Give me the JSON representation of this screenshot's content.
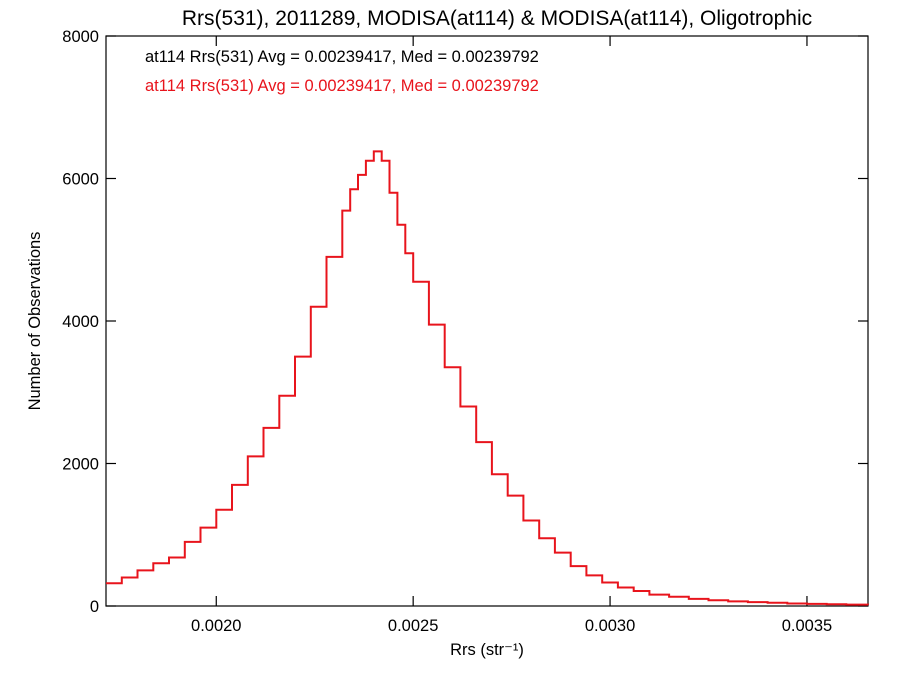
{
  "chart_data": {
    "type": "line",
    "title": "Rrs(531), 2011289, MODISA(at114) & MODISA(at114), Oligotrophic",
    "xlabel": "Rrs (str⁻¹)",
    "ylabel": "Number of Observations",
    "xlim": [
      0.00172,
      0.003655
    ],
    "ylim": [
      0,
      8000
    ],
    "x_ticks": [
      0.002,
      0.0025,
      0.003,
      0.0035
    ],
    "x_tick_labels": [
      "0.0020",
      "0.0025",
      "0.0030",
      "0.0035"
    ],
    "y_ticks": [
      0,
      2000,
      4000,
      6000,
      8000
    ],
    "y_tick_labels": [
      "0",
      "2000",
      "4000",
      "6000",
      "8000"
    ],
    "grid": false,
    "annotations": [
      {
        "text": "at114 Rrs(531) Avg = 0.00239417, Med = 0.00239792",
        "color": "#000000"
      },
      {
        "text": "at114 Rrs(531) Avg = 0.00239417, Med = 0.00239792",
        "color": "#e8141c"
      }
    ],
    "series": [
      {
        "color": "#e8141c",
        "style": "histogram-step",
        "x": [
          0.00172,
          0.00176,
          0.0018,
          0.00184,
          0.00188,
          0.00192,
          0.00196,
          0.002,
          0.00204,
          0.00208,
          0.00212,
          0.00216,
          0.0022,
          0.00224,
          0.00228,
          0.00232,
          0.00234,
          0.00236,
          0.00238,
          0.0024,
          0.00242,
          0.00244,
          0.00246,
          0.00248,
          0.0025,
          0.00254,
          0.00258,
          0.00262,
          0.00266,
          0.0027,
          0.00274,
          0.00278,
          0.00282,
          0.00286,
          0.0029,
          0.00294,
          0.00298,
          0.00302,
          0.00306,
          0.0031,
          0.00315,
          0.0032,
          0.00325,
          0.0033,
          0.00335,
          0.0034,
          0.00345,
          0.0035,
          0.00355,
          0.0036,
          0.003655
        ],
        "y": [
          320,
          400,
          500,
          600,
          680,
          900,
          1100,
          1350,
          1700,
          2100,
          2500,
          2950,
          3500,
          4200,
          4900,
          5550,
          5850,
          6050,
          6250,
          6380,
          6250,
          5800,
          5350,
          4950,
          4550,
          3950,
          3350,
          2800,
          2300,
          1850,
          1550,
          1200,
          950,
          750,
          560,
          430,
          330,
          260,
          210,
          160,
          130,
          100,
          80,
          65,
          55,
          45,
          35,
          30,
          25,
          20,
          15
        ]
      }
    ]
  }
}
